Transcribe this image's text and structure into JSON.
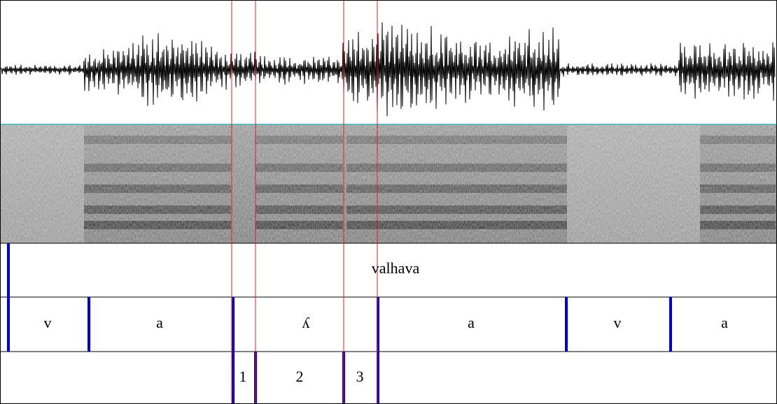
{
  "tiers": [
    {
      "intervals": [
        "valhava"
      ]
    },
    {
      "intervals": [
        "v",
        "a",
        "ʎ",
        "a",
        "v",
        "a"
      ]
    },
    {
      "intervals": [
        "1",
        "2",
        "3"
      ]
    }
  ]
}
